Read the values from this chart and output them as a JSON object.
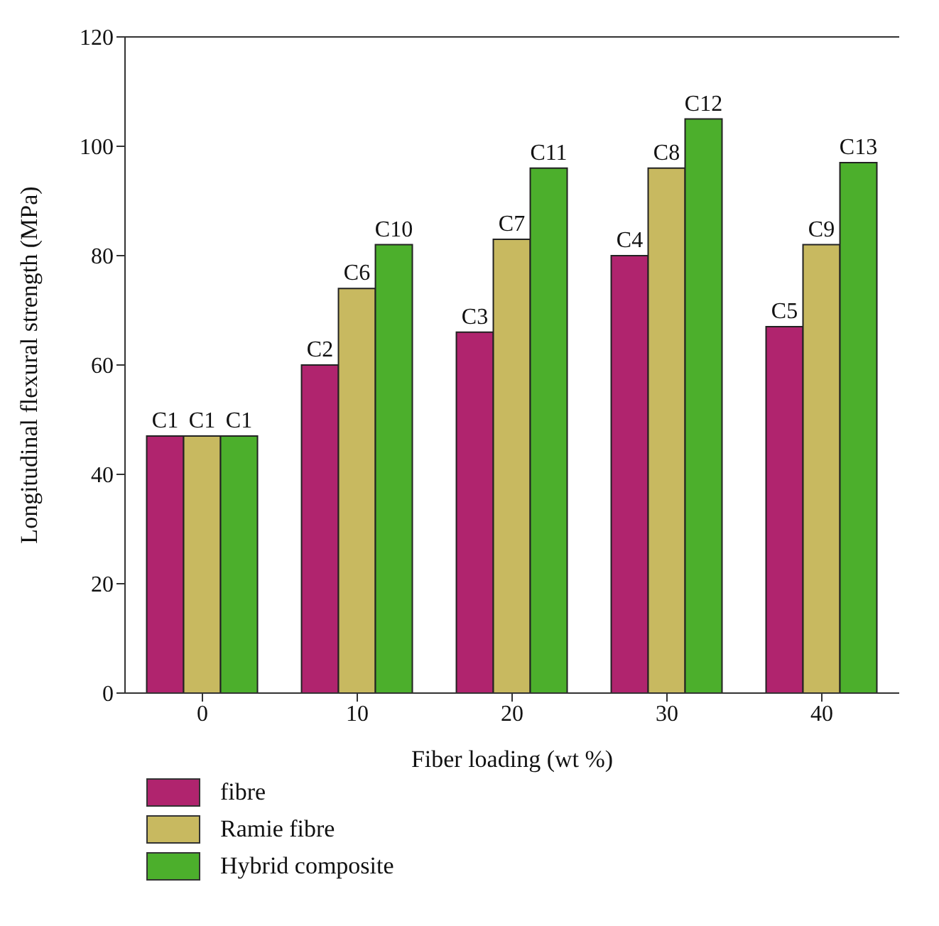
{
  "chart_data": {
    "type": "bar",
    "xlabel": "Fiber loading (wt %)",
    "ylabel": "Longitudinal flexural strength (MPa)",
    "categories": [
      "0",
      "10",
      "20",
      "30",
      "40"
    ],
    "series": [
      {
        "name": "fibre",
        "color": "#b0246e",
        "values": [
          47,
          60,
          66,
          80,
          67
        ],
        "value_labels": [
          "C1",
          "C2",
          "C3",
          "C4",
          "C5"
        ]
      },
      {
        "name": "Ramie fibre",
        "color": "#c8b960",
        "values": [
          47,
          74,
          83,
          96,
          82
        ],
        "value_labels": [
          "C1",
          "C6",
          "C7",
          "C8",
          "C9"
        ]
      },
      {
        "name": "Hybrid composite",
        "color": "#4caf2c",
        "values": [
          47,
          82,
          96,
          105,
          97
        ],
        "value_labels": [
          "C1",
          "C10",
          "C11",
          "C12",
          "C13"
        ]
      }
    ],
    "ylim": [
      0,
      120
    ],
    "yticks": [
      0,
      20,
      40,
      60,
      80,
      100,
      120
    ],
    "grid": false,
    "legend": "bottom left"
  }
}
